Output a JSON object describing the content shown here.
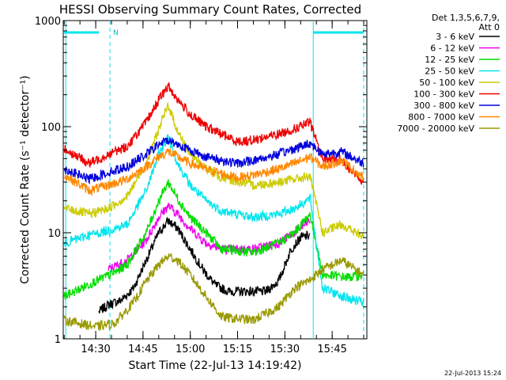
{
  "chart_data": {
    "type": "line",
    "title": "HESSI Observing Summary Count Rates, Corrected",
    "xlabel": "Start Time (22-Jul-13 14:19:42)",
    "ylabel": "Corrected Count Rate (s⁻¹ detector⁻¹)",
    "y_scale": "log",
    "ylim": [
      1,
      1000
    ],
    "xlim": [
      "14:19:42",
      "15:56:00"
    ],
    "x_ticks": [
      "14:30",
      "14:45",
      "15:00",
      "15:15",
      "15:30",
      "15:45"
    ],
    "y_ticks": [
      "1",
      "10",
      "100",
      "1000"
    ],
    "footer_stamp": "22-Jul-2013 15:24",
    "legend_title": [
      "Det 1,3,5,6,7,9,",
      "Att 0"
    ],
    "legend_position": "right",
    "annotations": [
      {
        "text": "N",
        "type": "flag-marker"
      },
      {
        "type": "hbar",
        "from": "14:20:00",
        "to": "14:31:00",
        "color": "#00e5ee"
      },
      {
        "type": "hbar",
        "from": "15:39:00",
        "to": "15:55:00",
        "color": "#00e5ee"
      },
      {
        "type": "vline",
        "x": "14:20:30",
        "style": "solid"
      },
      {
        "type": "vline",
        "x": "14:34:30",
        "style": "dashed"
      },
      {
        "type": "vline",
        "x": "15:39:00",
        "style": "solid"
      },
      {
        "type": "vline",
        "x": "15:55:00",
        "style": "dashed"
      }
    ],
    "series": [
      {
        "name": "3 - 6 keV",
        "color": "#000000",
        "points": [
          [
            "14:31:00",
            1.8
          ],
          [
            "14:34:00",
            2.1
          ],
          [
            "14:38:00",
            2.3
          ],
          [
            "14:42:00",
            3.0
          ],
          [
            "14:46:00",
            5.5
          ],
          [
            "14:50:00",
            10
          ],
          [
            "14:53:00",
            13
          ],
          [
            "14:56:00",
            11
          ],
          [
            "15:00:00",
            7
          ],
          [
            "15:04:00",
            4.5
          ],
          [
            "15:08:00",
            3.2
          ],
          [
            "15:12:00",
            2.8
          ],
          [
            "15:18:00",
            2.8
          ],
          [
            "15:24:00",
            2.8
          ],
          [
            "15:28:00",
            3.5
          ],
          [
            "15:32:00",
            7
          ],
          [
            "15:35:00",
            9
          ],
          [
            "15:38:00",
            9.5
          ]
        ]
      },
      {
        "name": "6 - 12 keV",
        "color": "#ee00ee",
        "points": [
          [
            "14:34:00",
            4.5
          ],
          [
            "14:40:00",
            5.5
          ],
          [
            "14:46:00",
            8.5
          ],
          [
            "14:50:00",
            14
          ],
          [
            "14:53:00",
            18
          ],
          [
            "14:56:00",
            15
          ],
          [
            "15:00:00",
            11
          ],
          [
            "15:05:00",
            8
          ],
          [
            "15:10:00",
            7
          ],
          [
            "15:20:00",
            7
          ],
          [
            "15:28:00",
            8
          ],
          [
            "15:33:00",
            10
          ],
          [
            "15:38:00",
            13
          ]
        ]
      },
      {
        "name": "12 - 25 keV",
        "color": "#00dd00",
        "points": [
          [
            "14:20:00",
            2.5
          ],
          [
            "14:30:00",
            3.5
          ],
          [
            "14:36:00",
            4.2
          ],
          [
            "14:40:00",
            5
          ],
          [
            "14:46:00",
            10
          ],
          [
            "14:50:00",
            20
          ],
          [
            "14:53:00",
            30
          ],
          [
            "14:56:00",
            21
          ],
          [
            "15:00:00",
            14
          ],
          [
            "15:05:00",
            10
          ],
          [
            "15:10:00",
            7
          ],
          [
            "15:20:00",
            6.5
          ],
          [
            "15:28:00",
            8
          ],
          [
            "15:33:00",
            10
          ],
          [
            "15:38:00",
            15
          ],
          [
            "15:42:00",
            4
          ],
          [
            "15:50:00",
            3.8
          ],
          [
            "15:55:00",
            4
          ]
        ]
      },
      {
        "name": "25 - 50 keV",
        "color": "#00e5ee",
        "points": [
          [
            "14:20:00",
            8
          ],
          [
            "14:28:00",
            9.5
          ],
          [
            "14:34:00",
            10.5
          ],
          [
            "14:40:00",
            12
          ],
          [
            "14:46:00",
            25
          ],
          [
            "14:50:00",
            55
          ],
          [
            "14:53:00",
            80
          ],
          [
            "14:56:00",
            45
          ],
          [
            "15:00:00",
            28
          ],
          [
            "15:05:00",
            20
          ],
          [
            "15:10:00",
            16
          ],
          [
            "15:20:00",
            14
          ],
          [
            "15:28:00",
            15
          ],
          [
            "15:33:00",
            17
          ],
          [
            "15:38:00",
            21
          ],
          [
            "15:42:00",
            3
          ],
          [
            "15:50:00",
            2.4
          ],
          [
            "15:55:00",
            2.2
          ]
        ]
      },
      {
        "name": "50 - 100 keV",
        "color": "#cccc00",
        "points": [
          [
            "14:20:00",
            17
          ],
          [
            "14:28:00",
            15
          ],
          [
            "14:34:00",
            17
          ],
          [
            "14:40:00",
            22
          ],
          [
            "14:46:00",
            45
          ],
          [
            "14:50:00",
            95
          ],
          [
            "14:53:00",
            160
          ],
          [
            "14:56:00",
            90
          ],
          [
            "15:00:00",
            55
          ],
          [
            "15:05:00",
            40
          ],
          [
            "15:10:00",
            33
          ],
          [
            "15:20:00",
            28
          ],
          [
            "15:28:00",
            30
          ],
          [
            "15:33:00",
            32
          ],
          [
            "15:38:00",
            34
          ],
          [
            "15:42:00",
            10
          ],
          [
            "15:48:00",
            12
          ],
          [
            "15:55:00",
            9
          ]
        ]
      },
      {
        "name": "100 - 300 keV",
        "color": "#ee0000",
        "points": [
          [
            "14:20:00",
            62
          ],
          [
            "14:28:00",
            45
          ],
          [
            "14:34:00",
            55
          ],
          [
            "14:40:00",
            65
          ],
          [
            "14:46:00",
            110
          ],
          [
            "14:50:00",
            180
          ],
          [
            "14:53:00",
            240
          ],
          [
            "14:56:00",
            180
          ],
          [
            "15:00:00",
            130
          ],
          [
            "15:05:00",
            100
          ],
          [
            "15:10:00",
            85
          ],
          [
            "15:15:00",
            72
          ],
          [
            "15:20:00",
            75
          ],
          [
            "15:28:00",
            85
          ],
          [
            "15:33:00",
            95
          ],
          [
            "15:38:00",
            110
          ],
          [
            "15:42:00",
            50
          ],
          [
            "15:48:00",
            48
          ],
          [
            "15:55:00",
            30
          ]
        ]
      },
      {
        "name": "300 - 800 keV",
        "color": "#0000dd",
        "points": [
          [
            "14:20:00",
            40
          ],
          [
            "14:28:00",
            32
          ],
          [
            "14:34:00",
            37
          ],
          [
            "14:40:00",
            42
          ],
          [
            "14:46:00",
            55
          ],
          [
            "14:50:00",
            68
          ],
          [
            "14:53:00",
            75
          ],
          [
            "14:56:00",
            68
          ],
          [
            "15:00:00",
            60
          ],
          [
            "15:05:00",
            52
          ],
          [
            "15:10:00",
            48
          ],
          [
            "15:15:00",
            45
          ],
          [
            "15:20:00",
            48
          ],
          [
            "15:28:00",
            55
          ],
          [
            "15:33:00",
            62
          ],
          [
            "15:38:00",
            70
          ],
          [
            "15:42:00",
            55
          ],
          [
            "15:48:00",
            58
          ],
          [
            "15:55:00",
            45
          ]
        ]
      },
      {
        "name": "800 - 7000 keV",
        "color": "#ff8800",
        "points": [
          [
            "14:20:00",
            35
          ],
          [
            "14:28:00",
            25
          ],
          [
            "14:34:00",
            28
          ],
          [
            "14:40:00",
            32
          ],
          [
            "14:46:00",
            42
          ],
          [
            "14:50:00",
            52
          ],
          [
            "14:53:00",
            58
          ],
          [
            "14:56:00",
            52
          ],
          [
            "15:00:00",
            45
          ],
          [
            "15:05:00",
            40
          ],
          [
            "15:10:00",
            36
          ],
          [
            "15:15:00",
            33
          ],
          [
            "15:20:00",
            35
          ],
          [
            "15:28:00",
            40
          ],
          [
            "15:33:00",
            45
          ],
          [
            "15:38:00",
            52
          ],
          [
            "15:42:00",
            42
          ],
          [
            "15:48:00",
            48
          ],
          [
            "15:55:00",
            33
          ]
        ]
      },
      {
        "name": "7000 - 20000 keV",
        "color": "#999900",
        "points": [
          [
            "14:20:00",
            1.5
          ],
          [
            "14:30:00",
            1.3
          ],
          [
            "14:36:00",
            1.4
          ],
          [
            "14:42:00",
            2.2
          ],
          [
            "14:46:00",
            3.5
          ],
          [
            "14:50:00",
            5
          ],
          [
            "14:53:00",
            6
          ],
          [
            "14:56:00",
            5.5
          ],
          [
            "15:00:00",
            4
          ],
          [
            "15:05:00",
            2.5
          ],
          [
            "15:10:00",
            1.6
          ],
          [
            "15:20:00",
            1.5
          ],
          [
            "15:28:00",
            2
          ],
          [
            "15:33:00",
            3
          ],
          [
            "15:38:00",
            3.6
          ],
          [
            "15:42:00",
            4.5
          ],
          [
            "15:48:00",
            5.5
          ],
          [
            "15:55:00",
            4
          ]
        ]
      }
    ]
  }
}
